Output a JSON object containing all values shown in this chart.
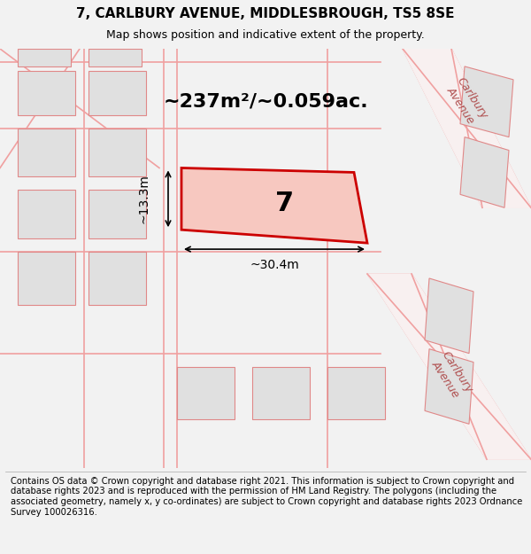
{
  "title_line1": "7, CARLBURY AVENUE, MIDDLESBROUGH, TS5 8SE",
  "title_line2": "Map shows position and indicative extent of the property.",
  "footer_text": "Contains OS data © Crown copyright and database right 2021. This information is subject to Crown copyright and database rights 2023 and is reproduced with the permission of HM Land Registry. The polygons (including the associated geometry, namely x, y co-ordinates) are subject to Crown copyright and database rights 2023 Ordnance Survey 100026316.",
  "area_label": "~237m²/~0.059ac.",
  "plot_number": "7",
  "dim_width": "~30.4m",
  "dim_height": "~13.3m",
  "background_color": "#f2f2f2",
  "map_background": "#ffffff",
  "plot_fill": "#f7c8c0",
  "plot_edge": "#cc0000",
  "building_fill": "#e0e0e0",
  "building_edge": "#e08888",
  "road_color": "#f0a0a0",
  "road_label_color": "#b05050",
  "title_fontsize": 11,
  "subtitle_fontsize": 9,
  "footer_fontsize": 7.2
}
